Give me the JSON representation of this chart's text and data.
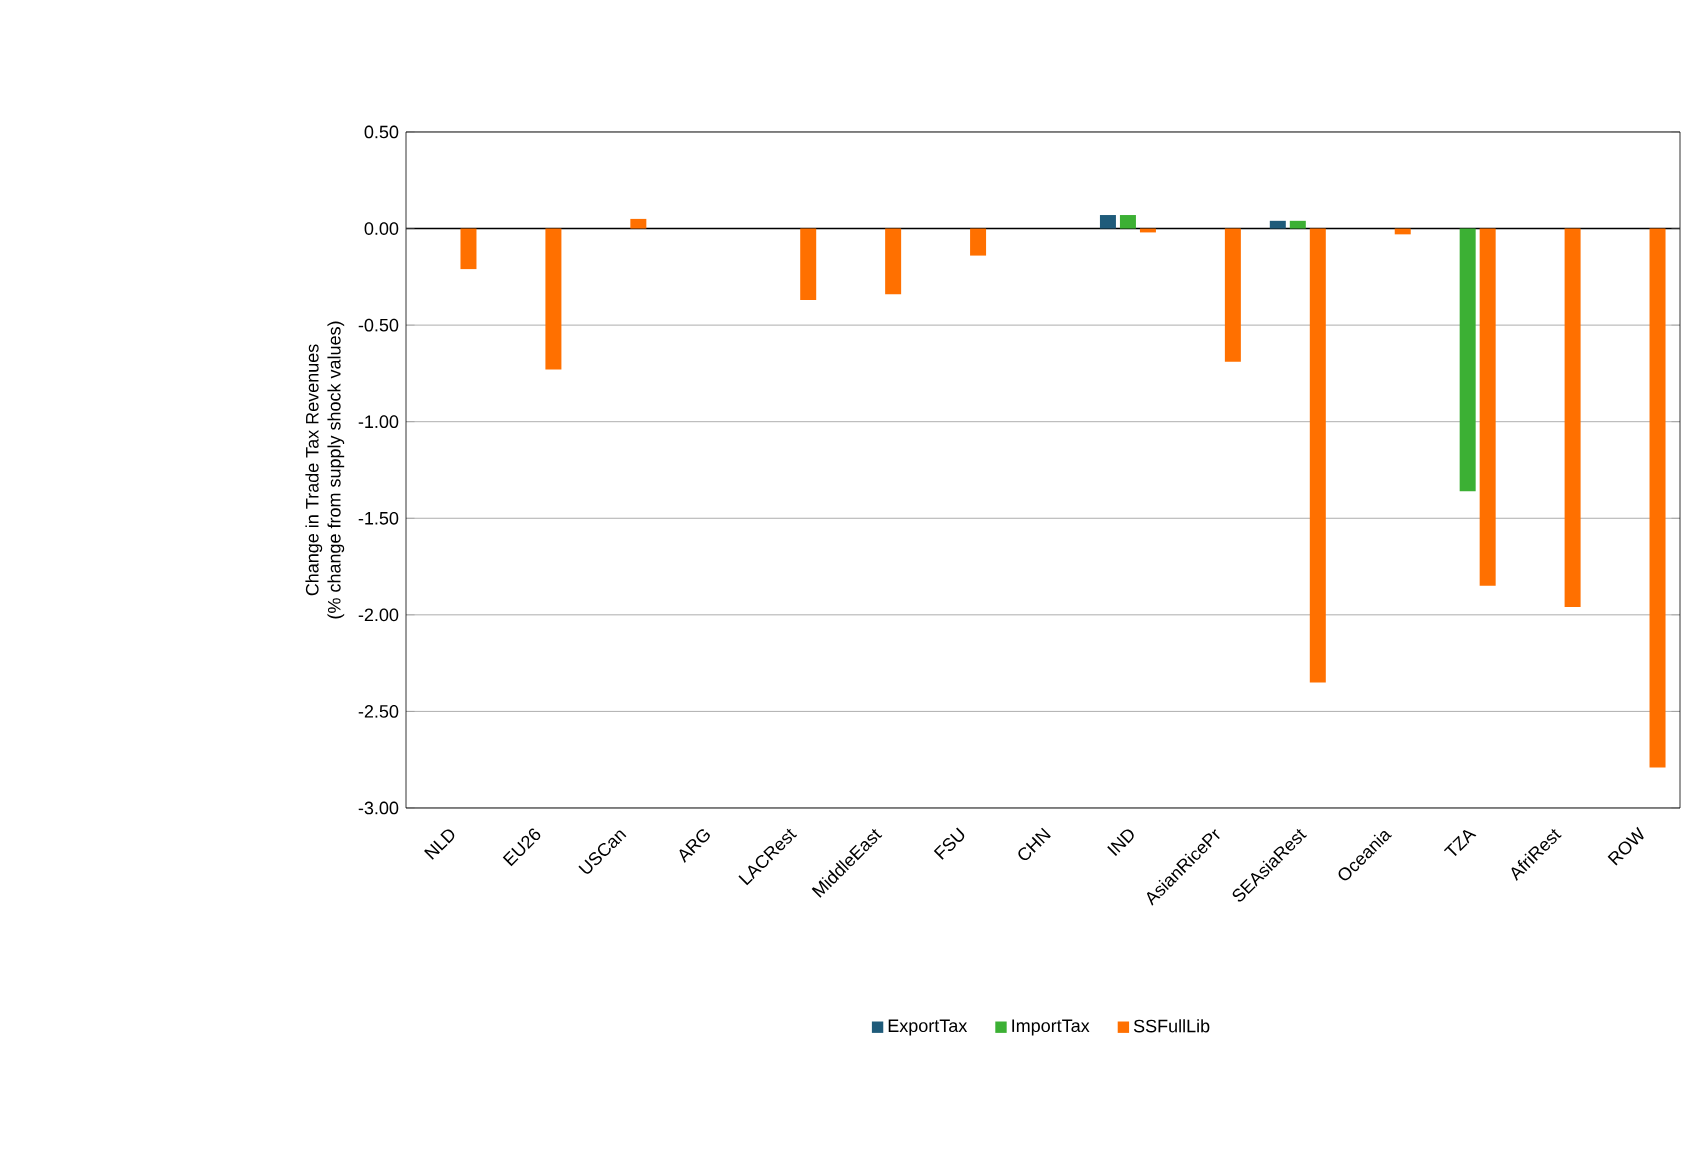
{
  "chart_data": {
    "type": "bar",
    "ylabel": "Change in Trade Tax Revenues\n(% change from supply shock values)",
    "categories": [
      "NLD",
      "EU26",
      "USCan",
      "ARG",
      "LACRest",
      "MiddleEast",
      "FSU",
      "CHN",
      "IND",
      "AsianRicePr",
      "SEAsiaRest",
      "Oceania",
      "TZA",
      "AfriRest",
      "ROW"
    ],
    "series": [
      {
        "name": "ExportTax",
        "color": "#1f5b7a",
        "values": [
          0,
          0,
          0,
          0,
          0,
          0,
          0,
          0,
          0.07,
          0,
          0.04,
          0,
          0,
          0,
          0
        ]
      },
      {
        "name": "ImportTax",
        "color": "#3cb034",
        "values": [
          0,
          0,
          0,
          0,
          0,
          0,
          0,
          0,
          0.07,
          0,
          0.04,
          0,
          -1.36,
          0,
          0
        ]
      },
      {
        "name": "SSFullLib",
        "color": "#ff7000",
        "values": [
          -0.21,
          -0.73,
          0.05,
          0,
          -0.37,
          -0.34,
          -0.14,
          0,
          -0.02,
          -0.69,
          -2.35,
          -0.03,
          -1.85,
          -1.96,
          -2.79
        ]
      }
    ],
    "ylim": [
      -3,
      0.5
    ],
    "yticks": [
      {
        "value": -3,
        "label": "-3.00"
      },
      {
        "value": -2.5,
        "label": "-2.50"
      },
      {
        "value": -2,
        "label": "-2.00"
      },
      {
        "value": -1.5,
        "label": "-1.50"
      },
      {
        "value": -1,
        "label": "-1.00"
      },
      {
        "value": -0.5,
        "label": "-0.50"
      },
      {
        "value": 0,
        "label": "0.00"
      },
      {
        "value": 0.5,
        "label": "0.50"
      }
    ],
    "grid": "y",
    "legend": "bottom"
  }
}
